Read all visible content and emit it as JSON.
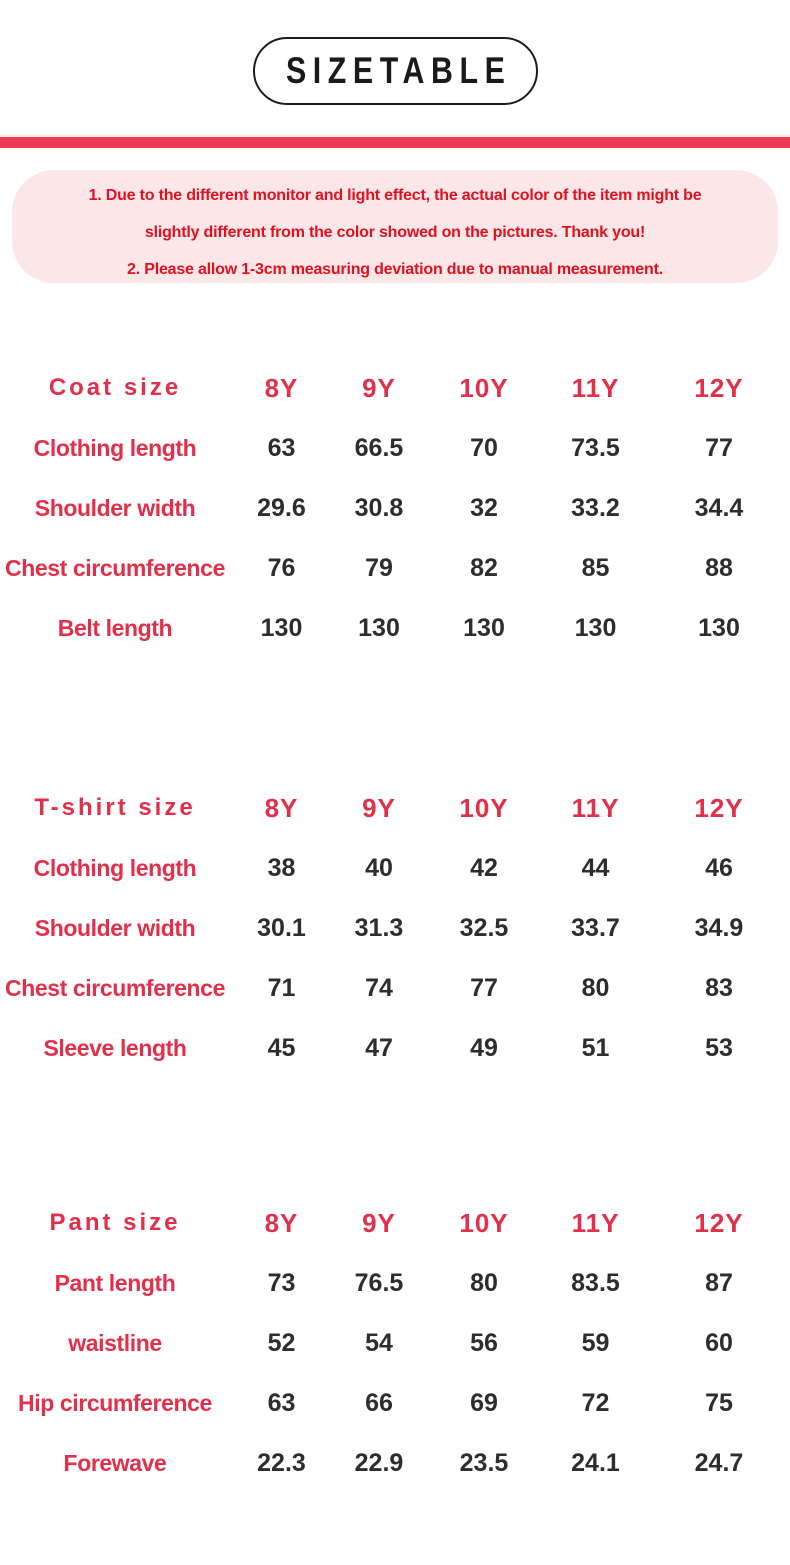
{
  "header": {
    "title": "SIZETABLE"
  },
  "notice": {
    "lines": [
      "1. Due to the different monitor and light effect, the actual color of the item might be",
      "slightly different from the color showed on the pictures. Thank you!",
      "2. Please allow 1-3cm measuring deviation due to manual measurement."
    ]
  },
  "colors": {
    "accent_red": "#e2304a",
    "notice_red": "#e1111f",
    "bar_red": "#ee3b56",
    "notice_bg": "#fbe6e8",
    "value_text": "#2d2d2d",
    "badge_border": "#1c1c1c"
  },
  "tables": [
    {
      "title": "Coat size",
      "sizes": [
        "8Y",
        "9Y",
        "10Y",
        "11Y",
        "12Y"
      ],
      "rows": [
        {
          "label": "Clothing length",
          "values": [
            "63",
            "66.5",
            "70",
            "73.5",
            "77"
          ]
        },
        {
          "label": "Shoulder width",
          "values": [
            "29.6",
            "30.8",
            "32",
            "33.2",
            "34.4"
          ]
        },
        {
          "label": "Chest circumference",
          "values": [
            "76",
            "79",
            "82",
            "85",
            "88"
          ]
        },
        {
          "label": "Belt length",
          "values": [
            "130",
            "130",
            "130",
            "130",
            "130"
          ]
        }
      ]
    },
    {
      "title": "T-shirt size",
      "sizes": [
        "8Y",
        "9Y",
        "10Y",
        "11Y",
        "12Y"
      ],
      "rows": [
        {
          "label": "Clothing length",
          "values": [
            "38",
            "40",
            "42",
            "44",
            "46"
          ]
        },
        {
          "label": "Shoulder width",
          "values": [
            "30.1",
            "31.3",
            "32.5",
            "33.7",
            "34.9"
          ]
        },
        {
          "label": "Chest circumference",
          "values": [
            "71",
            "74",
            "77",
            "80",
            "83"
          ]
        },
        {
          "label": "Sleeve length",
          "values": [
            "45",
            "47",
            "49",
            "51",
            "53"
          ]
        }
      ]
    },
    {
      "title": "Pant size",
      "sizes": [
        "8Y",
        "9Y",
        "10Y",
        "11Y",
        "12Y"
      ],
      "rows": [
        {
          "label": "Pant length",
          "values": [
            "73",
            "76.5",
            "80",
            "83.5",
            "87"
          ]
        },
        {
          "label": "waistline",
          "values": [
            "52",
            "54",
            "56",
            "59",
            "60"
          ]
        },
        {
          "label": "Hip circumference",
          "values": [
            "63",
            "66",
            "69",
            "72",
            "75"
          ]
        },
        {
          "label": "Forewave",
          "values": [
            "22.3",
            "22.9",
            "23.5",
            "24.1",
            "24.7"
          ]
        }
      ]
    }
  ]
}
